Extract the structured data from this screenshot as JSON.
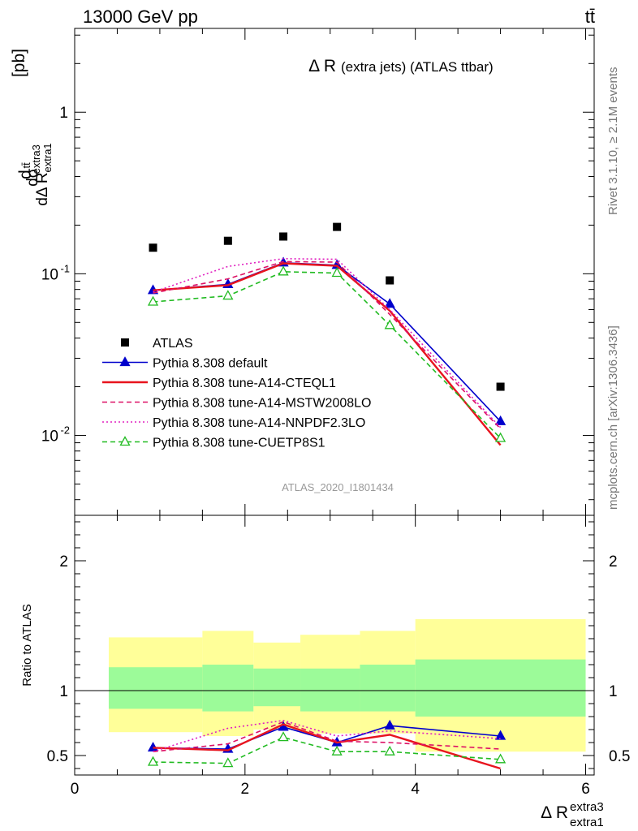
{
  "header": {
    "left": "13000 GeV pp",
    "right": "tt̄"
  },
  "side_labels": {
    "rivet": "Rivet 3.1.10, ≥ 2.1M events",
    "mcplots": "mcplots.cern.ch [arXiv:1306.3436]"
  },
  "watermark": "ATLAS_2020_I1801434",
  "chart_data": [
    {
      "type": "scatter",
      "title": "Δ R (extra jets) (ATLAS ttbar)",
      "title_main": "Δ R",
      "title_sub": "(extra jets) (ATLAS ttbar)",
      "ylabel": "dσ^{tt̄} / dΔ R_{extra1}^{extra3} [pb]",
      "yscale": "log",
      "ylim": [
        0.0032,
        3.3
      ],
      "xlim": [
        0,
        6.1
      ],
      "y_tick_labels": [
        "10^-2",
        "10^-1",
        "1"
      ],
      "legend_position": "center-left",
      "series": [
        {
          "name": "ATLAS",
          "color": "#000000",
          "style": "square",
          "x": [
            0.92,
            1.8,
            2.45,
            3.08,
            3.7,
            5.0
          ],
          "y": [
            0.145,
            0.16,
            0.17,
            0.195,
            0.091,
            0.02
          ]
        },
        {
          "name": "Pythia 8.308 default",
          "color": "#0000cc",
          "style": "solid-triangle",
          "x": [
            0.92,
            1.8,
            2.45,
            3.08,
            3.7,
            5.0
          ],
          "y": [
            0.079,
            0.086,
            0.117,
            0.113,
            0.065,
            0.0122
          ]
        },
        {
          "name": "Pythia 8.308 tune-A14-CTEQL1",
          "color": "#e8141e",
          "style": "solid",
          "x": [
            0.92,
            1.8,
            2.45,
            3.08,
            3.7,
            5.0
          ],
          "y": [
            0.079,
            0.085,
            0.116,
            0.112,
            0.059,
            0.0087
          ]
        },
        {
          "name": "Pythia 8.308 tune-A14-MSTW2008LO",
          "color": "#dd1166",
          "style": "dashed",
          "x": [
            0.92,
            1.8,
            2.45,
            3.08,
            3.7,
            5.0
          ],
          "y": [
            0.076,
            0.093,
            0.119,
            0.118,
            0.056,
            0.011
          ]
        },
        {
          "name": "Pythia 8.308 tune-A14-NNPDF2.3LO",
          "color": "#e020c0",
          "style": "dotted",
          "x": [
            0.92,
            1.8,
            2.45,
            3.08,
            3.7,
            5.0
          ],
          "y": [
            0.077,
            0.111,
            0.124,
            0.123,
            0.06,
            0.0112
          ]
        },
        {
          "name": "Pythia 8.308 tune-CUETP8S1",
          "color": "#22bb22",
          "style": "dashed-open-triangle",
          "x": [
            0.92,
            1.8,
            2.45,
            3.08,
            3.7,
            5.0
          ],
          "y": [
            0.067,
            0.073,
            0.103,
            0.101,
            0.048,
            0.0096
          ]
        }
      ]
    },
    {
      "type": "scatter",
      "ylabel": "Ratio to ATLAS",
      "xlabel": "Δ R_{extra1}^{extra3}",
      "xlim": [
        0,
        6.1
      ],
      "ylim": [
        0.35,
        2.35
      ],
      "x_tick_labels": [
        "0",
        "2",
        "4",
        "6"
      ],
      "y_tick_labels": [
        "0.5",
        "1",
        "2"
      ],
      "uncertainty_bands": {
        "bin_edges": [
          0.4,
          1.5,
          2.1,
          2.65,
          3.35,
          4.0,
          6.0
        ],
        "stat_low": [
          0.86,
          0.84,
          0.88,
          0.84,
          0.84,
          0.8
        ],
        "stat_high": [
          1.18,
          1.2,
          1.17,
          1.17,
          1.2,
          1.24
        ],
        "total_low": [
          0.68,
          0.65,
          0.7,
          0.67,
          0.67,
          0.53
        ],
        "total_high": [
          1.41,
          1.46,
          1.37,
          1.43,
          1.46,
          1.55
        ]
      },
      "series": [
        {
          "name": "Pythia 8.308 default",
          "color": "#0000cc",
          "style": "solid-triangle",
          "x": [
            0.92,
            1.8,
            2.45,
            3.08,
            3.7,
            5.0
          ],
          "y": [
            0.56,
            0.55,
            0.72,
            0.6,
            0.73,
            0.65
          ]
        },
        {
          "name": "Pythia 8.308 tune-A14-CTEQL1",
          "color": "#e8141e",
          "style": "solid",
          "x": [
            0.92,
            1.8,
            2.45,
            3.08,
            3.7,
            5.0
          ],
          "y": [
            0.56,
            0.54,
            0.74,
            0.6,
            0.66,
            0.4
          ]
        },
        {
          "name": "Pythia 8.308 tune-A14-MSTW2008LO",
          "color": "#dd1166",
          "style": "dashed",
          "x": [
            0.92,
            1.8,
            2.45,
            3.08,
            3.7,
            5.0
          ],
          "y": [
            0.53,
            0.59,
            0.76,
            0.61,
            0.6,
            0.55
          ]
        },
        {
          "name": "Pythia 8.308 tune-A14-NNPDF2.3LO",
          "color": "#e020c0",
          "style": "dotted",
          "x": [
            0.92,
            1.8,
            2.45,
            3.08,
            3.7,
            5.0
          ],
          "y": [
            0.53,
            0.71,
            0.77,
            0.65,
            0.69,
            0.63
          ]
        },
        {
          "name": "Pythia 8.308 tune-CUETP8S1",
          "color": "#22bb22",
          "style": "dashed-open-triangle",
          "x": [
            0.92,
            1.8,
            2.45,
            3.08,
            3.7,
            5.0
          ],
          "y": [
            0.45,
            0.44,
            0.64,
            0.53,
            0.53,
            0.47
          ]
        }
      ]
    }
  ]
}
